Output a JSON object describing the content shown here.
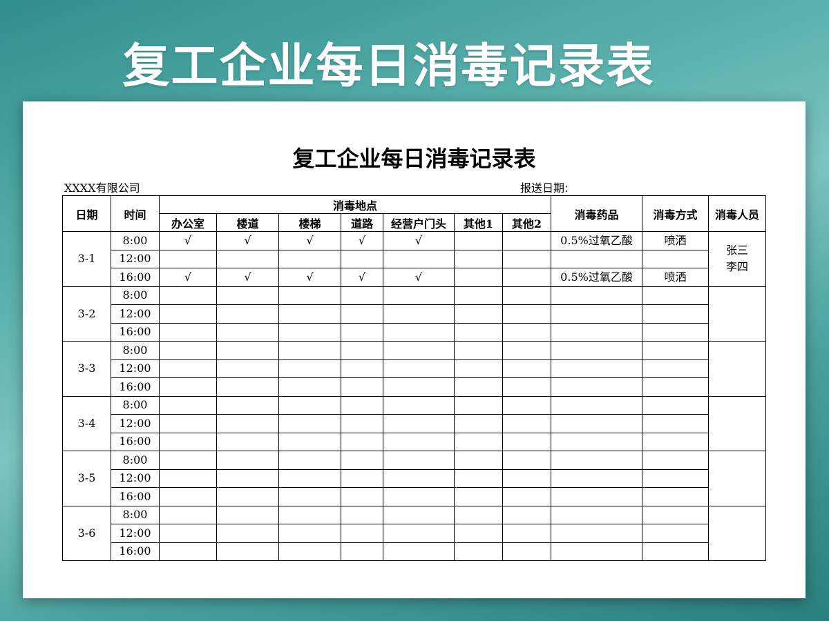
{
  "banner_title": "复工企业每日消毒记录表",
  "document": {
    "title": "复工企业每日消毒记录表",
    "company": "XXXX有限公司",
    "report_date_label": "报送日期:",
    "headers": {
      "date": "日期",
      "time": "时间",
      "locations": "消毒地点",
      "location_cols": [
        "办公室",
        "楼道",
        "楼梯",
        "道路",
        "经营户门头",
        "其他1",
        "其他2"
      ],
      "agent": "消毒药品",
      "method": "消毒方式",
      "staff": "消毒人员"
    },
    "days": [
      {
        "date": "3-1",
        "staff": "张三\n李四",
        "rows": [
          {
            "time": "8:00",
            "marks": [
              "√",
              "√",
              "√",
              "√",
              "√",
              "",
              ""
            ],
            "agent": "0.5%过氧乙酸",
            "method": "喷洒"
          },
          {
            "time": "12:00",
            "marks": [
              "",
              "",
              "",
              "",
              "",
              "",
              ""
            ],
            "agent": "",
            "method": ""
          },
          {
            "time": "16:00",
            "marks": [
              "√",
              "√",
              "√",
              "√",
              "√",
              "",
              ""
            ],
            "agent": "0.5%过氧乙酸",
            "method": "喷洒"
          }
        ]
      },
      {
        "date": "3-2",
        "staff": "",
        "rows": [
          {
            "time": "8:00"
          },
          {
            "time": "12:00"
          },
          {
            "time": "16:00"
          }
        ]
      },
      {
        "date": "3-3",
        "staff": "",
        "rows": [
          {
            "time": "8:00"
          },
          {
            "time": "12:00"
          },
          {
            "time": "16:00"
          }
        ]
      },
      {
        "date": "3-4",
        "staff": "",
        "rows": [
          {
            "time": "8:00"
          },
          {
            "time": "12:00"
          },
          {
            "time": "16:00"
          }
        ]
      },
      {
        "date": "3-5",
        "staff": "",
        "rows": [
          {
            "time": "8:00"
          },
          {
            "time": "12:00"
          },
          {
            "time": "16:00"
          }
        ]
      },
      {
        "date": "3-6",
        "staff": "",
        "rows": [
          {
            "time": "8:00"
          },
          {
            "time": "12:00"
          },
          {
            "time": "16:00"
          }
        ]
      }
    ]
  }
}
